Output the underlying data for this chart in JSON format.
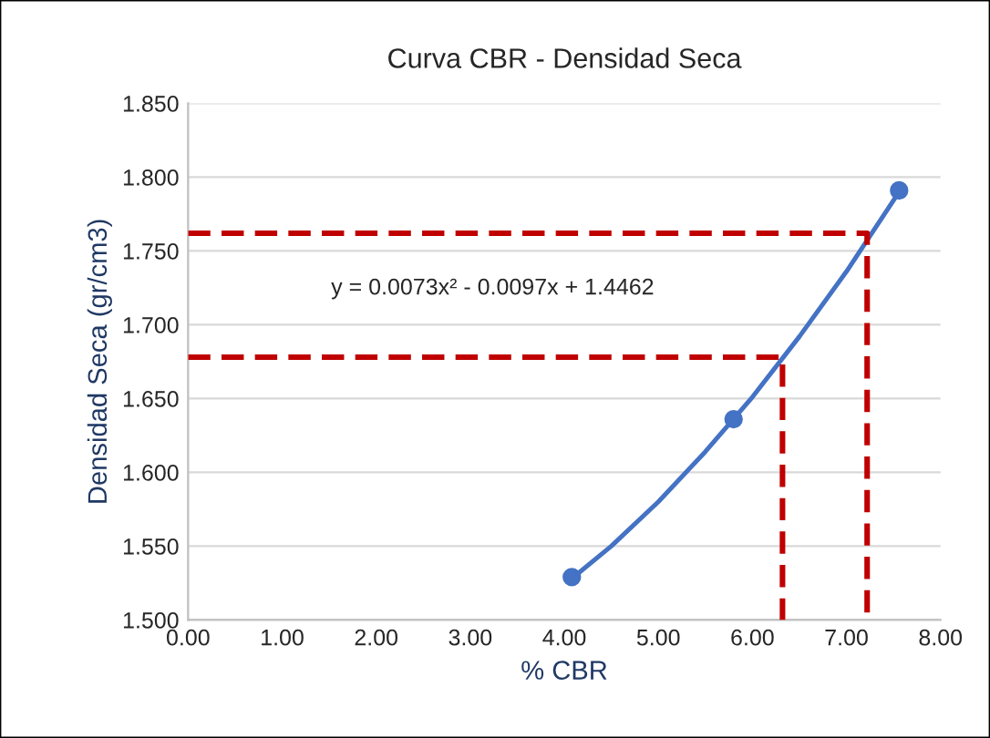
{
  "chart_data": {
    "type": "line",
    "title": "Curva CBR - Densidad Seca",
    "xlabel": "% CBR",
    "ylabel": "Densidad Seca (gr/cm3)",
    "xlim": [
      0,
      8
    ],
    "xticks": [
      {
        "value": 0,
        "label": "0.00"
      },
      {
        "value": 1,
        "label": "1.00"
      },
      {
        "value": 2,
        "label": "2.00"
      },
      {
        "value": 3,
        "label": "3.00"
      },
      {
        "value": 4,
        "label": "4.00"
      },
      {
        "value": 5,
        "label": "5.00"
      },
      {
        "value": 6,
        "label": "6.00"
      },
      {
        "value": 7,
        "label": "7.00"
      },
      {
        "value": 8,
        "label": "8.00"
      }
    ],
    "ylim": [
      1.5,
      1.85
    ],
    "yticks": [
      {
        "value": 1.5,
        "label": "1.500"
      },
      {
        "value": 1.55,
        "label": "1.550"
      },
      {
        "value": 1.6,
        "label": "1.600"
      },
      {
        "value": 1.65,
        "label": "1.650"
      },
      {
        "value": 1.7,
        "label": "1.700"
      },
      {
        "value": 1.75,
        "label": "1.750"
      },
      {
        "value": 1.8,
        "label": "1.800"
      },
      {
        "value": 1.85,
        "label": "1.850"
      }
    ],
    "grid": "y",
    "legend": false,
    "series": [
      {
        "color": "#4472c4",
        "line_style": "solid",
        "marker": "none",
        "x": [
          4.08,
          4.5,
          5,
          5.5,
          6,
          6.5,
          7,
          7.56
        ],
        "values": [
          1.528,
          1.55,
          1.58,
          1.614,
          1.651,
          1.692,
          1.736,
          1.79
        ]
      },
      {
        "type": "scatter",
        "color": "#4472c4",
        "marker": "circle",
        "x": [
          4.08,
          5.8,
          7.56
        ],
        "values": [
          1.529,
          1.636,
          1.791
        ]
      },
      {
        "color": "#c00000",
        "line_style": "dashed",
        "marker": "none",
        "x": [
          0,
          6.32,
          6.32
        ],
        "values": [
          1.678,
          1.678,
          1.5
        ]
      },
      {
        "color": "#c00000",
        "line_style": "dashed",
        "marker": "none",
        "x": [
          0,
          7.22,
          7.22
        ],
        "values": [
          1.762,
          1.762,
          1.5
        ]
      }
    ],
    "annotations": [
      "y = 0.0073x² - 0.0097x + 1.4462"
    ]
  }
}
